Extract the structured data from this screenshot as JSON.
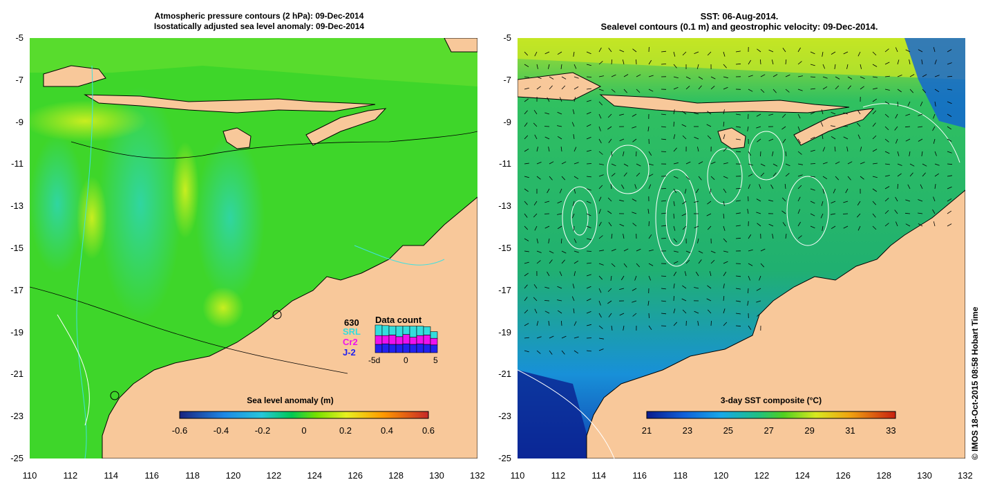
{
  "left_panel": {
    "title_line1": "Atmospheric pressure contours (2 hPa): 09-Dec-2014",
    "title_line2": "Isostatically adjusted sea level anomaly: 09-Dec-2014",
    "colorbar_label": "Sea level anomaly (m)",
    "colorbar_ticks": [
      "-0.6",
      "-0.4",
      "-0.2",
      "0",
      "0.2",
      "0.4",
      "0.6"
    ],
    "legend": {
      "count": "630",
      "title": "Data count",
      "missions": [
        {
          "name": "SRL",
          "color": "#33dddd"
        },
        {
          "name": "Cr2",
          "color": "#ee11ee"
        },
        {
          "name": "J-2",
          "color": "#2222ee"
        }
      ],
      "axis_ticks": [
        "-5d",
        "0",
        "5"
      ],
      "bars": [
        {
          "j2": 0.3,
          "cr2": 0.32,
          "srl": 0.38
        },
        {
          "j2": 0.32,
          "cr2": 0.3,
          "srl": 0.36
        },
        {
          "j2": 0.3,
          "cr2": 0.34,
          "srl": 0.32
        },
        {
          "j2": 0.3,
          "cr2": 0.28,
          "srl": 0.38
        },
        {
          "j2": 0.32,
          "cr2": 0.34,
          "srl": 0.3
        },
        {
          "j2": 0.3,
          "cr2": 0.26,
          "srl": 0.4
        },
        {
          "j2": 0.32,
          "cr2": 0.3,
          "srl": 0.34
        },
        {
          "j2": 0.3,
          "cr2": 0.34,
          "srl": 0.3
        },
        {
          "j2": 0.28,
          "cr2": 0.24,
          "srl": 0.24
        }
      ]
    }
  },
  "right_panel": {
    "title_line1": "SST: 06-Aug-2014.",
    "title_line2": "Sealevel contours (0.1 m) and geostrophic velocity: 09-Dec-2014.",
    "colorbar_label": "3-day SST composite (°C)",
    "colorbar_ticks": [
      "21",
      "23",
      "25",
      "27",
      "29",
      "31",
      "33"
    ]
  },
  "axes": {
    "lat_ticks": [
      "-5",
      "-7",
      "-9",
      "-11",
      "-13",
      "-15",
      "-17",
      "-19",
      "-21",
      "-23",
      "-25"
    ],
    "lon_ticks": [
      "110",
      "112",
      "114",
      "116",
      "118",
      "120",
      "122",
      "124",
      "126",
      "128",
      "130",
      "132"
    ]
  },
  "credit": "© IMOS 18-Oct-2015 08:58 Hobart Time",
  "colors": {
    "land": "#f8c89a",
    "anomaly_scale": [
      "#1a237e",
      "#1e88e5",
      "#26c6da",
      "#00c853",
      "#76e000",
      "#e8f020",
      "#ff9800",
      "#c62828"
    ],
    "sst_scale": [
      "#0a1a8c",
      "#1060d8",
      "#18a8e8",
      "#20c080",
      "#50d020",
      "#d8e820",
      "#f0a010",
      "#c82010"
    ]
  }
}
